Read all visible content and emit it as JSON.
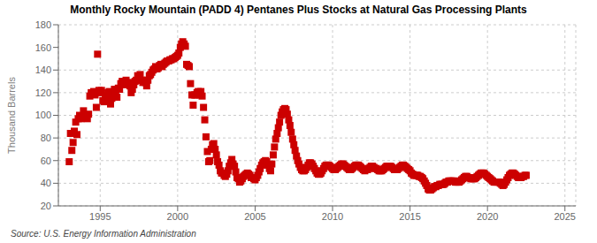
{
  "chart_data": {
    "type": "scatter",
    "title": "Monthly Rocky Mountain (PADD 4) Pentanes Plus Stocks at Natural Gas Processing Plants",
    "ylabel": "Thousand Barrels",
    "annotations": [
      "Source: U.S. Energy Information Administration"
    ],
    "color": "#cc0000",
    "marker": "square",
    "grid": true,
    "xlim": [
      1992.3,
      2025.7
    ],
    "xticks": [
      1995,
      2000,
      2005,
      2010,
      2015,
      2020,
      2025
    ],
    "ylim": [
      20,
      180
    ],
    "yticks": [
      20,
      40,
      60,
      80,
      100,
      120,
      140,
      160,
      180
    ],
    "x": [
      1993.0,
      1993.08,
      1993.17,
      1993.25,
      1993.33,
      1993.42,
      1993.5,
      1993.58,
      1993.67,
      1993.75,
      1993.83,
      1993.92,
      1994.0,
      1994.08,
      1994.17,
      1994.25,
      1994.33,
      1994.42,
      1994.5,
      1994.58,
      1994.67,
      1994.75,
      1994.83,
      1994.92,
      1995.0,
      1995.08,
      1995.17,
      1995.25,
      1995.33,
      1995.42,
      1995.5,
      1995.58,
      1995.67,
      1995.75,
      1995.83,
      1995.92,
      1996.0,
      1996.08,
      1996.17,
      1996.25,
      1996.33,
      1996.42,
      1996.5,
      1996.58,
      1996.67,
      1996.75,
      1996.83,
      1996.92,
      1997.0,
      1997.08,
      1997.17,
      1997.25,
      1997.33,
      1997.42,
      1997.5,
      1997.58,
      1997.67,
      1997.75,
      1997.83,
      1997.92,
      1998.0,
      1998.08,
      1998.17,
      1998.25,
      1998.33,
      1998.42,
      1998.5,
      1998.58,
      1998.67,
      1998.75,
      1998.83,
      1998.92,
      1999.0,
      1999.08,
      1999.17,
      1999.25,
      1999.33,
      1999.42,
      1999.5,
      1999.58,
      1999.67,
      1999.75,
      1999.83,
      1999.92,
      2000.0,
      2000.08,
      2000.17,
      2000.25,
      2000.33,
      2000.42,
      2000.5,
      2000.58,
      2000.67,
      2000.75,
      2000.83,
      2000.92,
      2001.0,
      2001.08,
      2001.17,
      2001.25,
      2001.33,
      2001.42,
      2001.5,
      2001.58,
      2001.67,
      2001.75,
      2001.83,
      2001.92,
      2002.0,
      2002.08,
      2002.17,
      2002.25,
      2002.33,
      2002.42,
      2002.5,
      2002.58,
      2002.67,
      2002.75,
      2002.83,
      2002.92,
      2003.0,
      2003.08,
      2003.17,
      2003.25,
      2003.33,
      2003.42,
      2003.5,
      2003.58,
      2003.67,
      2003.75,
      2003.83,
      2003.92,
      2004.0,
      2004.08,
      2004.17,
      2004.25,
      2004.33,
      2004.42,
      2004.5,
      2004.58,
      2004.67,
      2004.75,
      2004.83,
      2004.92,
      2005.0,
      2005.08,
      2005.17,
      2005.25,
      2005.33,
      2005.42,
      2005.5,
      2005.58,
      2005.67,
      2005.75,
      2005.83,
      2005.92,
      2006.0,
      2006.08,
      2006.17,
      2006.25,
      2006.33,
      2006.42,
      2006.5,
      2006.58,
      2006.67,
      2006.75,
      2006.83,
      2006.92,
      2007.0,
      2007.08,
      2007.17,
      2007.25,
      2007.33,
      2007.42,
      2007.5,
      2007.58,
      2007.67,
      2007.75,
      2007.83,
      2007.92,
      2008.0,
      2008.08,
      2008.17,
      2008.25,
      2008.33,
      2008.42,
      2008.5,
      2008.58,
      2008.67,
      2008.75,
      2008.83,
      2008.92,
      2009.0,
      2009.08,
      2009.17,
      2009.25,
      2009.33,
      2009.42,
      2009.5,
      2009.58,
      2009.67,
      2009.75,
      2009.83,
      2009.92,
      2010.0,
      2010.08,
      2010.17,
      2010.25,
      2010.33,
      2010.42,
      2010.5,
      2010.58,
      2010.67,
      2010.75,
      2010.83,
      2010.92,
      2011.0,
      2011.08,
      2011.17,
      2011.25,
      2011.33,
      2011.42,
      2011.5,
      2011.58,
      2011.67,
      2011.75,
      2011.83,
      2011.92,
      2012.0,
      2012.08,
      2012.17,
      2012.25,
      2012.33,
      2012.42,
      2012.5,
      2012.58,
      2012.67,
      2012.75,
      2012.83,
      2012.92,
      2013.0,
      2013.08,
      2013.17,
      2013.25,
      2013.33,
      2013.42,
      2013.5,
      2013.58,
      2013.67,
      2013.75,
      2013.83,
      2013.92,
      2014.0,
      2014.08,
      2014.17,
      2014.25,
      2014.33,
      2014.42,
      2014.5,
      2014.58,
      2014.67,
      2014.75,
      2014.83,
      2014.92,
      2015.0,
      2015.08,
      2015.17,
      2015.25,
      2015.33,
      2015.42,
      2015.5,
      2015.58,
      2015.67,
      2015.75,
      2015.83,
      2015.92,
      2016.0,
      2016.08,
      2016.17,
      2016.25,
      2016.33,
      2016.42,
      2016.5,
      2016.58,
      2016.67,
      2016.75,
      2016.83,
      2016.92,
      2017.0,
      2017.08,
      2017.17,
      2017.25,
      2017.33,
      2017.42,
      2017.5,
      2017.58,
      2017.67,
      2017.75,
      2017.83,
      2017.92,
      2018.0,
      2018.08,
      2018.17,
      2018.25,
      2018.33,
      2018.42,
      2018.5,
      2018.58,
      2018.67,
      2018.75,
      2018.83,
      2018.92,
      2019.0,
      2019.08,
      2019.17,
      2019.25,
      2019.33,
      2019.42,
      2019.5,
      2019.58,
      2019.67,
      2019.75,
      2019.83,
      2019.92,
      2020.0,
      2020.08,
      2020.17,
      2020.25,
      2020.33,
      2020.42,
      2020.5,
      2020.58,
      2020.67,
      2020.75,
      2020.83,
      2020.92,
      2021.0,
      2021.08,
      2021.17,
      2021.25,
      2021.33,
      2021.42,
      2021.5,
      2021.58,
      2021.67,
      2021.75,
      2021.83,
      2021.92,
      2022.0,
      2022.08,
      2022.17,
      2022.25,
      2022.33,
      2022.42,
      2022.5
    ],
    "values": [
      59,
      84,
      69,
      76,
      86,
      94,
      83,
      97,
      100,
      97,
      99,
      104,
      99,
      98,
      97,
      101,
      117,
      120,
      119,
      121,
      118,
      107,
      154,
      122,
      120,
      122,
      113,
      112,
      117,
      116,
      120,
      121,
      110,
      115,
      118,
      123,
      120,
      116,
      124,
      123,
      128,
      130,
      127,
      128,
      131,
      128,
      129,
      126,
      120,
      123,
      127,
      130,
      131,
      135,
      134,
      136,
      131,
      129,
      131,
      129,
      126,
      131,
      135,
      136,
      138,
      140,
      141,
      143,
      141,
      142,
      144,
      145,
      143,
      145,
      146,
      147,
      148,
      148,
      149,
      149,
      150,
      150,
      151,
      152,
      153,
      155,
      160,
      163,
      165,
      163,
      161,
      145,
      144,
      143,
      128,
      118,
      109,
      118,
      118,
      120,
      121,
      118,
      121,
      117,
      107,
      96,
      81,
      68,
      59,
      60,
      70,
      74,
      75,
      70,
      65,
      59,
      56,
      51,
      49,
      49,
      47,
      46,
      48,
      51,
      55,
      58,
      61,
      57,
      55,
      50,
      45,
      44,
      41,
      42,
      44,
      46,
      47,
      48,
      49,
      48,
      47,
      45,
      45,
      44,
      43,
      45,
      47,
      50,
      53,
      56,
      58,
      59,
      60,
      59,
      56,
      53,
      51,
      57,
      65,
      72,
      79,
      84,
      89,
      94,
      100,
      103,
      105,
      106,
      105,
      101,
      96,
      91,
      85,
      79,
      74,
      69,
      64,
      60,
      57,
      54,
      52,
      51,
      51,
      52,
      54,
      56,
      58,
      58,
      57,
      55,
      53,
      51,
      49,
      48,
      48,
      49,
      51,
      53,
      55,
      56,
      56,
      56,
      55,
      54,
      53,
      52,
      52,
      53,
      54,
      55,
      56,
      57,
      57,
      56,
      55,
      54,
      53,
      52,
      52,
      53,
      54,
      55,
      56,
      56,
      56,
      55,
      54,
      53,
      52,
      51,
      52,
      52,
      53,
      54,
      55,
      55,
      54,
      53,
      53,
      52,
      51,
      51,
      51,
      52,
      53,
      54,
      55,
      55,
      55,
      55,
      54,
      53,
      52,
      52,
      52,
      53,
      54,
      55,
      56,
      56,
      55,
      54,
      53,
      52,
      51,
      49,
      48,
      47,
      47,
      47,
      47,
      46,
      46,
      45,
      44,
      42,
      40,
      38,
      35,
      34,
      34,
      35,
      36,
      37,
      37,
      38,
      38,
      39,
      39,
      39,
      39,
      40,
      41,
      41,
      42,
      42,
      42,
      42,
      42,
      41,
      41,
      41,
      41,
      42,
      43,
      44,
      45,
      46,
      46,
      45,
      45,
      44,
      44,
      44,
      44,
      45,
      46,
      47,
      48,
      49,
      49,
      49,
      48,
      47,
      46,
      45,
      44,
      43,
      42,
      41,
      41,
      41,
      41,
      41,
      40,
      39,
      38,
      39,
      41,
      43,
      45,
      47,
      48,
      49,
      49,
      48,
      47,
      46,
      45,
      45,
      45,
      46,
      46,
      47,
      47
    ]
  }
}
